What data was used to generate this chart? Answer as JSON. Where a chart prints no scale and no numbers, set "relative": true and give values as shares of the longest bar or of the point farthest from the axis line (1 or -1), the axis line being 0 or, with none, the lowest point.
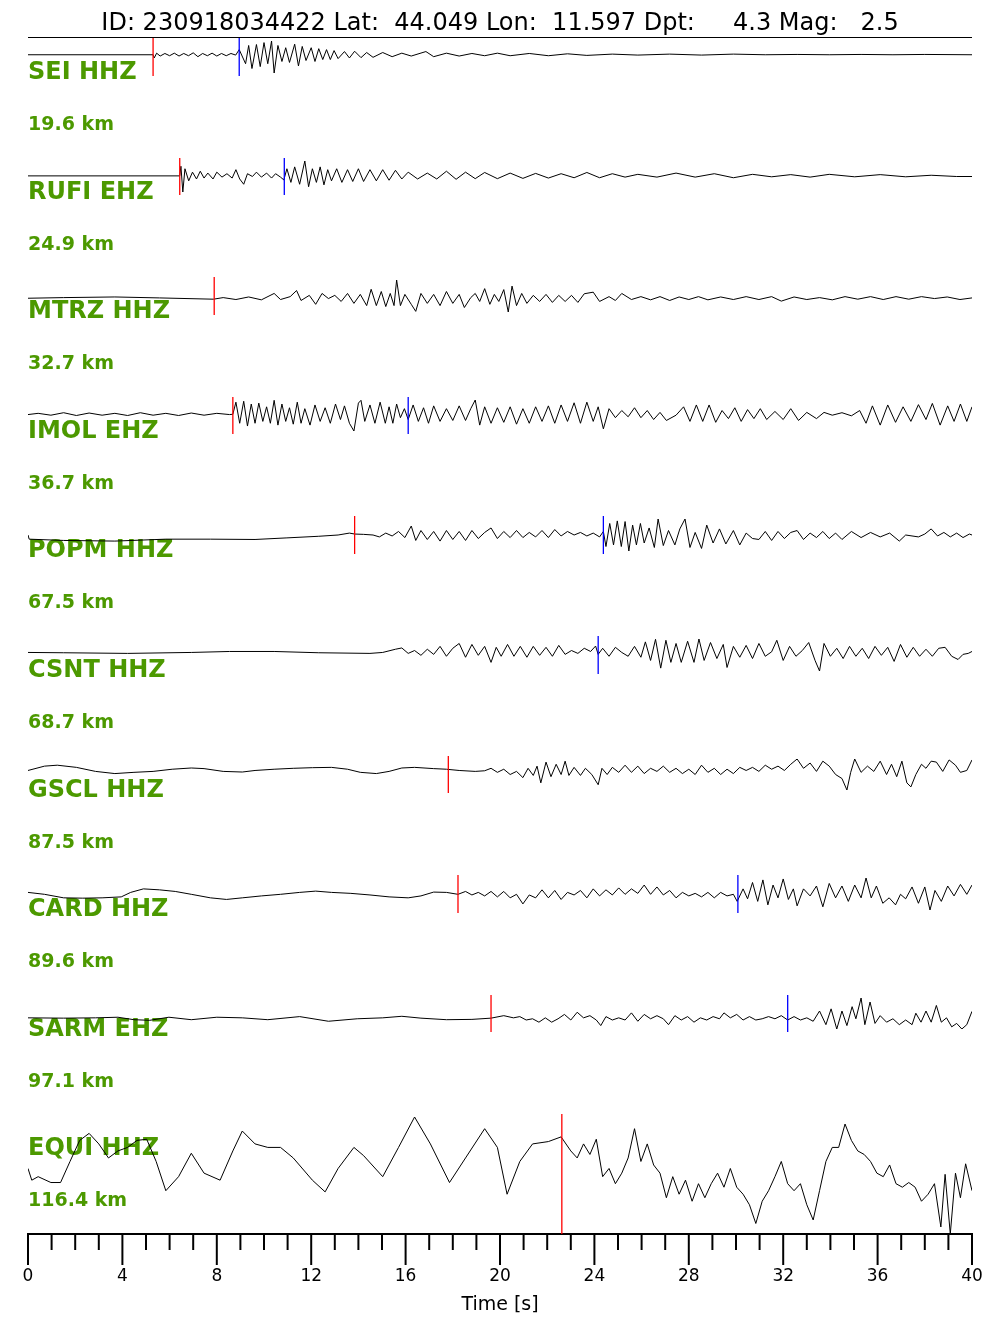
{
  "chart_data": [
    {
      "type": "line",
      "title": "ID: 230918034422 Lat:  44.049 Lon:  11.597 Dpt:     4.3 Mag:   2.5",
      "annotations": [
        "SEI HHZ",
        "19.6 km"
      ],
      "relative": true,
      "color": "#000000",
      "xlim": [
        0,
        40
      ],
      "tick_labels": false,
      "ref_lines": [
        {
          "axis": "x",
          "value": 5.3,
          "color": "#ff0000"
        },
        {
          "axis": "x",
          "value": 8.95,
          "color": "#0000ff"
        }
      ],
      "x": [
        0,
        5.3,
        5.35,
        5.45,
        5.6,
        5.8,
        6.0,
        6.2,
        6.4,
        6.6,
        6.8,
        7.0,
        7.2,
        7.4,
        7.6,
        7.8,
        8.0,
        8.2,
        8.4,
        8.6,
        8.8,
        8.95,
        9.22,
        9.35,
        9.49,
        9.68,
        9.84,
        10.0,
        10.16,
        10.32,
        10.43,
        10.59,
        10.76,
        10.92,
        11.08,
        11.3,
        11.46,
        11.62,
        11.78,
        12.0,
        12.16,
        12.32,
        12.49,
        12.65,
        12.81,
        12.97,
        13.14,
        13.41,
        13.62,
        13.84,
        14.11,
        14.35,
        14.62,
        15.03,
        15.43,
        15.84,
        16.24,
        16.86,
        17.19,
        17.73,
        18.27,
        18.81,
        19.35,
        19.89,
        20.43,
        21.24,
        22.05,
        22.86,
        23.68,
        24.76,
        25.84,
        27.19,
        28.54,
        29.89,
        31.24,
        32.59,
        33.95,
        35.3,
        36.65,
        38.0,
        40
      ],
      "values": [
        0.57,
        0.57,
        0.47,
        0.62,
        0.53,
        0.61,
        0.54,
        0.62,
        0.53,
        0.61,
        0.54,
        0.63,
        0.51,
        0.61,
        0.54,
        0.62,
        0.53,
        0.61,
        0.54,
        0.61,
        0.56,
        0.73,
        0.29,
        0.86,
        0.14,
        0.89,
        0.2,
        0.95,
        0.29,
        1.0,
        0,
        0.86,
        0.36,
        0.79,
        0.33,
        0.9,
        0.22,
        0.83,
        0.39,
        0.79,
        0.36,
        0.76,
        0.42,
        0.73,
        0.42,
        0.7,
        0.45,
        0.67,
        0.47,
        0.68,
        0.48,
        0.64,
        0.49,
        0.64,
        0.51,
        0.62,
        0.53,
        0.67,
        0.51,
        0.62,
        0.53,
        0.61,
        0.54,
        0.62,
        0.54,
        0.61,
        0.54,
        0.6,
        0.55,
        0.59,
        0.56,
        0.59,
        0.56,
        0.59,
        0.57,
        0.58,
        0.57,
        0.58,
        0.57,
        0.58,
        0.57
      ]
    },
    {
      "type": "line",
      "annotations": [
        "RUFI EHZ",
        "24.9 km"
      ],
      "relative": true,
      "color": "#000000",
      "xlim": [
        0,
        40
      ],
      "tick_labels": false,
      "ref_lines": [
        {
          "axis": "x",
          "value": 6.43,
          "color": "#ff0000"
        },
        {
          "axis": "x",
          "value": 10.86,
          "color": "#0000ff"
        }
      ],
      "x": [
        0,
        6.43,
        6.48,
        6.56,
        6.65,
        6.81,
        6.97,
        7.14,
        7.3,
        7.46,
        7.62,
        7.84,
        8.0,
        8.22,
        8.43,
        8.65,
        8.81,
        8.97,
        9.14,
        9.3,
        9.51,
        9.68,
        9.89,
        10.11,
        10.32,
        10.49,
        10.7,
        10.84,
        10.97,
        11.14,
        11.3,
        11.51,
        11.73,
        11.89,
        12.05,
        12.22,
        12.38,
        12.54,
        12.7,
        12.86,
        13.08,
        13.3,
        13.54,
        13.76,
        14.0,
        14.22,
        14.49,
        14.76,
        15.03,
        15.3,
        15.57,
        15.84,
        16.11,
        16.51,
        16.92,
        17.32,
        17.73,
        18.14,
        18.54,
        18.95,
        19.35,
        19.89,
        20.43,
        20.97,
        21.51,
        22.05,
        22.59,
        23.14,
        23.68,
        24.22,
        24.76,
        25.3,
        25.84,
        26.65,
        27.46,
        28.27,
        29.08,
        29.89,
        30.7,
        31.51,
        32.32,
        33.14,
        33.95,
        35.03,
        36.11,
        37.19,
        38.27,
        39.35,
        40
      ],
      "values": [
        0.52,
        0.52,
        0.83,
        0,
        0.75,
        0.36,
        0.64,
        0.42,
        0.67,
        0.45,
        0.61,
        0.42,
        0.64,
        0.48,
        0.59,
        0.45,
        0.72,
        0.42,
        0.25,
        0.59,
        0.5,
        0.64,
        0.48,
        0.61,
        0.45,
        0.59,
        0.48,
        0.39,
        0.75,
        0.31,
        0.81,
        0.25,
        1.0,
        0.17,
        0.75,
        0.31,
        0.81,
        0.23,
        0.72,
        0.36,
        0.75,
        0.31,
        0.72,
        0.34,
        0.75,
        0.34,
        0.72,
        0.36,
        0.72,
        0.38,
        0.7,
        0.42,
        0.64,
        0.42,
        0.61,
        0.42,
        0.67,
        0.41,
        0.64,
        0.43,
        0.63,
        0.43,
        0.61,
        0.44,
        0.6,
        0.45,
        0.59,
        0.46,
        0.63,
        0.46,
        0.59,
        0.48,
        0.57,
        0.48,
        0.61,
        0.48,
        0.59,
        0.46,
        0.57,
        0.49,
        0.56,
        0.48,
        0.57,
        0.49,
        0.56,
        0.49,
        0.54,
        0.5,
        0.5
      ]
    },
    {
      "type": "line",
      "annotations": [
        "MTRZ HHZ",
        "32.7 km"
      ],
      "relative": true,
      "color": "#000000",
      "xlim": [
        0,
        40
      ],
      "tick_labels": false,
      "ref_lines": [
        {
          "axis": "x",
          "value": 7.89,
          "color": "#ff0000"
        }
      ],
      "x": [
        0,
        1.51,
        3.68,
        5.57,
        7.86,
        8.27,
        8.81,
        9.35,
        9.89,
        10.43,
        10.7,
        11.11,
        11.38,
        11.57,
        11.92,
        12.19,
        12.46,
        12.73,
        13.0,
        13.27,
        13.54,
        13.81,
        14.08,
        14.35,
        14.54,
        14.76,
        14.97,
        15.16,
        15.35,
        15.51,
        15.62,
        15.78,
        15.97,
        16.24,
        16.43,
        16.65,
        16.92,
        17.19,
        17.46,
        17.73,
        18.0,
        18.27,
        18.49,
        18.76,
        18.95,
        19.14,
        19.35,
        19.57,
        19.76,
        19.95,
        20.16,
        20.35,
        20.51,
        20.7,
        20.92,
        21.14,
        21.41,
        21.68,
        21.95,
        22.22,
        22.49,
        22.76,
        23.03,
        23.3,
        23.57,
        23.95,
        24.22,
        24.62,
        24.89,
        25.16,
        25.57,
        25.97,
        26.38,
        26.78,
        27.19,
        27.59,
        28.0,
        28.41,
        28.81,
        29.35,
        29.89,
        30.43,
        30.97,
        31.51,
        31.92,
        32.46,
        33.0,
        33.54,
        34.08,
        34.62,
        35.16,
        35.7,
        36.24,
        36.78,
        37.32,
        37.86,
        38.41,
        38.95,
        39.49,
        40
      ],
      "values": [
        0.43,
        0.45,
        0.47,
        0.44,
        0.4,
        0.45,
        0.39,
        0.47,
        0.38,
        0.58,
        0.39,
        0.48,
        0.67,
        0.36,
        0.52,
        0.24,
        0.58,
        0.42,
        0.52,
        0.33,
        0.58,
        0.27,
        0.55,
        0.2,
        0.71,
        0.2,
        0.64,
        0.17,
        0.58,
        0.2,
        1.0,
        0.2,
        0.55,
        0.24,
        0.02,
        0.58,
        0.27,
        0.55,
        0.2,
        0.64,
        0.27,
        0.55,
        0.14,
        0.45,
        0.58,
        0.33,
        0.73,
        0.24,
        0.55,
        0.33,
        0.7,
        0,
        0.81,
        0.2,
        0.58,
        0.27,
        0.52,
        0.33,
        0.55,
        0.3,
        0.52,
        0.33,
        0.52,
        0.3,
        0.57,
        0.62,
        0.33,
        0.48,
        0.36,
        0.58,
        0.39,
        0.48,
        0.38,
        0.48,
        0.36,
        0.47,
        0.39,
        0.48,
        0.38,
        0.47,
        0.39,
        0.48,
        0.39,
        0.48,
        0.34,
        0.47,
        0.39,
        0.45,
        0.38,
        0.48,
        0.4,
        0.48,
        0.39,
        0.48,
        0.4,
        0.48,
        0.42,
        0.47,
        0.39,
        0.44
      ]
    },
    {
      "type": "line",
      "annotations": [
        "IMOL EHZ",
        "36.7 km"
      ],
      "relative": true,
      "color": "#000000",
      "xlim": [
        0,
        40
      ],
      "tick_labels": false,
      "ref_lines": [
        {
          "axis": "x",
          "value": 8.68,
          "color": "#ff0000"
        },
        {
          "axis": "x",
          "value": 16.11,
          "color": "#0000ff"
        }
      ],
      "x": [
        0,
        0.43,
        0.97,
        1.51,
        2.05,
        2.59,
        3.14,
        3.68,
        4.22,
        4.76,
        5.3,
        5.84,
        6.38,
        6.92,
        7.46,
        8.0,
        8.54,
        8.68,
        8.81,
        8.97,
        9.14,
        9.3,
        9.46,
        9.62,
        9.78,
        9.95,
        10.11,
        10.27,
        10.43,
        10.59,
        10.76,
        10.92,
        11.08,
        11.24,
        11.41,
        11.57,
        11.73,
        11.95,
        12.16,
        12.38,
        12.59,
        12.81,
        13.03,
        13.24,
        13.41,
        13.62,
        13.81,
        14.0,
        14.11,
        14.27,
        14.49,
        14.7,
        14.92,
        15.14,
        15.3,
        15.46,
        15.62,
        15.78,
        15.95,
        16.11,
        16.32,
        16.54,
        16.76,
        16.97,
        17.19,
        17.46,
        17.73,
        18.0,
        18.27,
        18.54,
        18.76,
        18.95,
        19.14,
        19.35,
        19.62,
        19.89,
        20.16,
        20.43,
        20.7,
        20.97,
        21.24,
        21.51,
        21.78,
        22.05,
        22.32,
        22.59,
        22.86,
        23.14,
        23.41,
        23.68,
        23.95,
        24.16,
        24.38,
        24.62,
        24.89,
        25.16,
        25.43,
        25.7,
        25.97,
        26.24,
        26.51,
        26.78,
        27.05,
        27.46,
        27.78,
        28.05,
        28.32,
        28.59,
        28.86,
        29.14,
        29.41,
        29.68,
        29.95,
        30.22,
        30.49,
        30.76,
        31.03,
        31.3,
        31.65,
        32.0,
        32.32,
        32.65,
        33.0,
        33.41,
        33.73,
        34.08,
        34.49,
        34.89,
        35.24,
        35.51,
        35.78,
        36.11,
        36.43,
        36.76,
        37.08,
        37.41,
        37.73,
        38.05,
        38.32,
        38.65,
        38.97,
        39.24,
        39.51,
        39.78,
        40
      ],
      "values": [
        0.53,
        0.57,
        0.51,
        0.59,
        0.5,
        0.58,
        0.51,
        0.57,
        0.5,
        0.59,
        0.51,
        0.57,
        0.5,
        0.58,
        0.51,
        0.57,
        0.53,
        0.54,
        0.93,
        0.25,
        0.96,
        0.16,
        0.87,
        0.25,
        0.9,
        0.31,
        0.78,
        0.25,
        0.99,
        0.19,
        0.87,
        0.31,
        0.75,
        0.22,
        0.93,
        0.25,
        0.72,
        0.19,
        0.84,
        0.31,
        0.75,
        0.25,
        0.87,
        0.37,
        0.81,
        0.25,
        0,
        0.9,
        0.99,
        0.31,
        0.84,
        0.25,
        0.93,
        0.25,
        0.78,
        0.25,
        0.87,
        0.43,
        0.72,
        0.37,
        0.84,
        0.31,
        0.75,
        0.25,
        0.81,
        0.31,
        0.72,
        0.34,
        0.81,
        0.34,
        0.72,
        1.0,
        0.19,
        0.78,
        0.25,
        0.75,
        0.28,
        0.78,
        0.22,
        0.72,
        0.25,
        0.78,
        0.31,
        0.81,
        0.25,
        0.84,
        0.31,
        0.91,
        0.25,
        0.93,
        0.31,
        0.78,
        0.07,
        0.72,
        0.43,
        0.66,
        0.46,
        0.75,
        0.43,
        0.66,
        0.37,
        0.6,
        0.34,
        0.51,
        0.78,
        0.31,
        0.84,
        0.31,
        0.84,
        0.28,
        0.66,
        0.4,
        0.75,
        0.31,
        0.69,
        0.4,
        0.72,
        0.37,
        0.63,
        0.37,
        0.72,
        0.34,
        0.6,
        0.4,
        0.6,
        0.51,
        0.59,
        0.49,
        0.66,
        0.25,
        0.81,
        0.19,
        0.84,
        0.28,
        0.78,
        0.31,
        0.85,
        0.37,
        0.89,
        0.19,
        0.81,
        0.31,
        0.87,
        0.31,
        0.78
      ]
    },
    {
      "type": "line",
      "annotations": [
        "POPM HHZ",
        "67.5 km"
      ],
      "relative": true,
      "color": "#000000",
      "xlim": [
        0,
        40
      ],
      "tick_labels": false,
      "ref_lines": [
        {
          "axis": "x",
          "value": 13.84,
          "color": "#ff0000"
        },
        {
          "axis": "x",
          "value": 24.38,
          "color": "#0000ff"
        }
      ],
      "x": [
        0,
        0.05,
        1.51,
        3.68,
        5.84,
        7.73,
        9.62,
        10.97,
        12.32,
        13.14,
        13.62,
        13.84,
        14.22,
        14.62,
        14.89,
        15.16,
        15.43,
        15.7,
        15.97,
        16.24,
        16.43,
        16.65,
        16.92,
        17.19,
        17.46,
        17.73,
        18.0,
        18.27,
        18.54,
        18.81,
        19.08,
        19.35,
        19.62,
        19.89,
        20.16,
        20.43,
        20.7,
        20.97,
        21.24,
        21.51,
        21.78,
        22.05,
        22.32,
        22.59,
        22.86,
        23.14,
        23.41,
        23.68,
        23.95,
        24.22,
        24.38,
        24.49,
        24.65,
        24.81,
        24.97,
        25.14,
        25.3,
        25.46,
        25.62,
        25.78,
        25.95,
        26.11,
        26.32,
        26.54,
        26.7,
        26.92,
        27.14,
        27.41,
        27.62,
        27.84,
        28.05,
        28.27,
        28.54,
        28.76,
        29.03,
        29.3,
        29.57,
        29.89,
        30.16,
        30.43,
        30.7,
        30.97,
        31.24,
        31.51,
        31.78,
        32.05,
        32.32,
        32.59,
        32.86,
        33.14,
        33.41,
        33.68,
        33.95,
        34.22,
        34.49,
        34.89,
        35.3,
        35.7,
        36.11,
        36.51,
        36.92,
        37.19,
        37.73,
        38.0,
        38.27,
        38.54,
        38.81,
        39.08,
        39.35,
        39.62,
        39.89,
        40
      ],
      "values": [
        0.5,
        0.37,
        0.33,
        0.31,
        0.37,
        0.37,
        0.36,
        0.41,
        0.46,
        0.5,
        0.56,
        0.53,
        0.52,
        0.5,
        0.44,
        0.56,
        0.47,
        0.61,
        0.42,
        0.78,
        0.33,
        0.64,
        0.36,
        0.61,
        0.31,
        0.64,
        0.36,
        0.61,
        0.33,
        0.64,
        0.39,
        0.58,
        0.72,
        0.39,
        0.61,
        0.42,
        0.64,
        0.42,
        0.58,
        0.44,
        0.64,
        0.42,
        0.67,
        0.47,
        0.61,
        0.5,
        0.58,
        0.47,
        0.56,
        0.44,
        0.61,
        0.14,
        0.86,
        0.19,
        0.94,
        0.14,
        0.92,
        0,
        0.81,
        0.19,
        0.86,
        0.25,
        0.72,
        0.11,
        1.0,
        0.17,
        0.64,
        0.19,
        0.69,
        1.0,
        0.11,
        0.58,
        0.08,
        0.81,
        0.25,
        0.69,
        0.22,
        0.64,
        0.19,
        0.56,
        0.39,
        0.36,
        0.61,
        0.33,
        0.61,
        0.39,
        0.58,
        0.64,
        0.36,
        0.56,
        0.42,
        0.61,
        0.39,
        0.56,
        0.36,
        0.61,
        0.42,
        0.58,
        0.44,
        0.56,
        0.31,
        0.5,
        0.44,
        0.53,
        0.69,
        0.47,
        0.58,
        0.44,
        0.56,
        0.42,
        0.53,
        0.5
      ]
    },
    {
      "type": "line",
      "annotations": [
        "CSNT HHZ",
        "68.7 km"
      ],
      "relative": true,
      "color": "#000000",
      "xlim": [
        0,
        40
      ],
      "tick_labels": false,
      "ref_lines": [
        {
          "axis": "x",
          "value": 24.16,
          "color": "#0000ff"
        }
      ],
      "x": [
        0,
        1.51,
        4.22,
        6.92,
        8.54,
        10.43,
        12.32,
        14.49,
        15.03,
        15.57,
        15.84,
        16.11,
        16.38,
        16.65,
        16.92,
        17.19,
        17.46,
        17.73,
        18.0,
        18.27,
        18.54,
        18.81,
        19.08,
        19.35,
        19.62,
        19.84,
        20.05,
        20.32,
        20.59,
        20.86,
        21.14,
        21.41,
        21.68,
        21.95,
        22.22,
        22.49,
        22.76,
        23.03,
        23.3,
        23.57,
        23.84,
        24.05,
        24.16,
        24.35,
        24.62,
        24.89,
        25.16,
        25.43,
        25.7,
        25.97,
        26.16,
        26.38,
        26.59,
        26.81,
        27.03,
        27.24,
        27.46,
        27.68,
        27.95,
        28.22,
        28.43,
        28.65,
        28.92,
        29.19,
        29.46,
        29.62,
        29.89,
        30.16,
        30.43,
        30.7,
        30.97,
        31.24,
        31.51,
        31.73,
        32.0,
        32.27,
        32.54,
        32.81,
        33.08,
        33.35,
        33.54,
        33.73,
        34.0,
        34.27,
        34.54,
        34.81,
        35.08,
        35.35,
        35.62,
        35.89,
        36.16,
        36.43,
        36.7,
        36.97,
        37.24,
        37.51,
        37.78,
        38.05,
        38.32,
        38.59,
        38.86,
        39.14,
        39.41,
        39.62,
        39.84,
        40
      ],
      "values": [
        0.58,
        0.57,
        0.55,
        0.58,
        0.61,
        0.61,
        0.57,
        0.55,
        0.58,
        0.68,
        0.72,
        0.55,
        0.64,
        0.49,
        0.68,
        0.52,
        0.77,
        0.46,
        0.71,
        0.86,
        0.43,
        0.83,
        0.49,
        0.77,
        0.27,
        0.74,
        0.46,
        0.83,
        0.46,
        0.77,
        0.43,
        0.77,
        0.49,
        0.74,
        0.46,
        0.8,
        0.52,
        0.64,
        0.55,
        0.71,
        0.61,
        0.78,
        0.52,
        0.71,
        0.46,
        0.74,
        0.58,
        0.46,
        0.77,
        0.43,
        0.91,
        0.33,
        0.99,
        0.09,
        0.96,
        0.27,
        0.86,
        0.27,
        0.93,
        0.27,
        1.0,
        0.33,
        0.89,
        0.39,
        0.83,
        0.11,
        0.77,
        0.43,
        0.8,
        0.39,
        0.86,
        0.46,
        0.6,
        0.96,
        0.33,
        0.77,
        0.46,
        0.64,
        0.89,
        0.33,
        0,
        0.86,
        0.46,
        0.71,
        0.39,
        0.77,
        0.46,
        0.71,
        0.39,
        0.77,
        0.49,
        0.74,
        0.3,
        0.83,
        0.43,
        0.74,
        0.46,
        0.68,
        0.46,
        0.71,
        0.74,
        0.46,
        0.36,
        0.52,
        0.55,
        0.61
      ]
    },
    {
      "type": "line",
      "annotations": [
        "GSCL HHZ",
        "87.5 km"
      ],
      "relative": true,
      "color": "#000000",
      "xlim": [
        0,
        40
      ],
      "tick_labels": false,
      "ref_lines": [
        {
          "axis": "x",
          "value": 17.81,
          "color": "#ff0000"
        }
      ],
      "x": [
        0,
        0.7,
        1.24,
        2.05,
        2.86,
        3.68,
        4.49,
        5.3,
        6.11,
        6.92,
        7.46,
        8.27,
        9.08,
        9.62,
        10.43,
        11.24,
        12.05,
        12.86,
        13.54,
        14.08,
        14.76,
        15.3,
        15.84,
        16.38,
        17.19,
        17.73,
        18.27,
        18.95,
        19.35,
        19.62,
        19.89,
        20.16,
        20.43,
        20.7,
        20.97,
        21.19,
        21.41,
        21.57,
        21.73,
        21.95,
        22.16,
        22.38,
        22.59,
        22.76,
        22.92,
        23.14,
        23.41,
        23.62,
        23.89,
        24.16,
        24.32,
        24.54,
        24.76,
        25.03,
        25.3,
        25.57,
        25.84,
        26.11,
        26.38,
        26.65,
        26.92,
        27.19,
        27.46,
        27.73,
        28.0,
        28.27,
        28.54,
        28.81,
        29.08,
        29.35,
        29.62,
        29.89,
        30.16,
        30.43,
        30.7,
        30.97,
        31.24,
        31.51,
        31.78,
        32.05,
        32.32,
        32.59,
        32.86,
        33.14,
        33.41,
        33.68,
        33.95,
        34.22,
        34.49,
        34.7,
        34.86,
        35.03,
        35.3,
        35.57,
        35.84,
        36.11,
        36.38,
        36.59,
        36.81,
        37.03,
        37.24,
        37.41,
        37.62,
        37.86,
        38.05,
        38.27,
        38.49,
        38.76,
        39.03,
        39.3,
        39.51,
        39.78,
        40
      ],
      "values": [
        0.63,
        0.77,
        0.8,
        0.73,
        0.6,
        0.53,
        0.57,
        0.6,
        0.67,
        0.71,
        0.69,
        0.6,
        0.58,
        0.63,
        0.67,
        0.7,
        0.72,
        0.73,
        0.67,
        0.57,
        0.53,
        0.6,
        0.71,
        0.73,
        0.69,
        0.67,
        0.63,
        0.6,
        0.62,
        0.7,
        0.57,
        0.67,
        0.5,
        0.6,
        0.4,
        0.7,
        0.47,
        0.77,
        0.23,
        0.9,
        0.43,
        0.83,
        0.5,
        0.93,
        0.47,
        0.73,
        0.47,
        0.7,
        0.5,
        0.17,
        0.7,
        0.5,
        0.73,
        0.57,
        0.8,
        0.57,
        0.77,
        0.53,
        0.7,
        0.6,
        0.77,
        0.57,
        0.7,
        0.53,
        0.67,
        0.5,
        0.8,
        0.57,
        0.7,
        0.5,
        0.67,
        0.53,
        0.73,
        0.63,
        0.73,
        0.6,
        0.8,
        0.67,
        0.77,
        0.63,
        0.83,
        1.0,
        0.7,
        0.87,
        0.6,
        0.93,
        0.77,
        0.5,
        0.37,
        0,
        0.57,
        1.0,
        0.57,
        0.77,
        0.6,
        0.93,
        0.5,
        0.83,
        0.43,
        0.93,
        0.23,
        0.1,
        0.5,
        0.83,
        0.7,
        0.93,
        0.9,
        0.6,
        0.97,
        0.8,
        0.57,
        0.63,
        0.97
      ]
    },
    {
      "type": "line",
      "annotations": [
        "CARD HHZ",
        "89.6 km"
      ],
      "relative": true,
      "color": "#000000",
      "xlim": [
        0,
        40
      ],
      "tick_labels": false,
      "ref_lines": [
        {
          "axis": "x",
          "value": 18.22,
          "color": "#ff0000"
        },
        {
          "axis": "x",
          "value": 30.08,
          "color": "#0000ff"
        }
      ],
      "x": [
        0,
        0.7,
        1.51,
        2.32,
        3.14,
        3.95,
        4.35,
        4.89,
        5.57,
        6.24,
        6.92,
        7.73,
        8.41,
        9.08,
        9.89,
        10.7,
        11.51,
        12.19,
        12.86,
        13.68,
        14.49,
        15.3,
        16.11,
        16.65,
        17.19,
        17.73,
        18.22,
        18.54,
        18.81,
        19.08,
        19.35,
        19.62,
        19.89,
        20.16,
        20.43,
        20.7,
        20.97,
        21.24,
        21.51,
        21.78,
        22.05,
        22.32,
        22.59,
        22.86,
        23.14,
        23.41,
        23.68,
        23.95,
        24.22,
        24.49,
        24.76,
        25.03,
        25.3,
        25.57,
        25.84,
        26.11,
        26.38,
        26.65,
        26.92,
        27.19,
        27.46,
        27.73,
        28.0,
        28.27,
        28.54,
        28.81,
        29.08,
        29.35,
        29.62,
        29.89,
        30.05,
        30.3,
        30.49,
        30.7,
        30.92,
        31.14,
        31.35,
        31.57,
        31.78,
        32.0,
        32.22,
        32.43,
        32.59,
        32.86,
        33.14,
        33.41,
        33.68,
        33.95,
        34.22,
        34.49,
        34.76,
        35.03,
        35.3,
        35.51,
        35.73,
        35.95,
        36.22,
        36.49,
        36.76,
        36.97,
        37.19,
        37.46,
        37.73,
        38.0,
        38.22,
        38.43,
        38.7,
        38.97,
        39.24,
        39.51,
        39.78,
        40
      ],
      "values": [
        0.55,
        0.49,
        0.38,
        0.37,
        0.38,
        0.41,
        0.55,
        0.66,
        0.63,
        0.58,
        0.49,
        0.38,
        0.33,
        0.38,
        0.44,
        0.49,
        0.55,
        0.59,
        0.55,
        0.52,
        0.47,
        0.41,
        0.38,
        0.44,
        0.56,
        0.55,
        0.49,
        0.58,
        0.47,
        0.55,
        0.44,
        0.58,
        0.41,
        0.58,
        0.38,
        0.49,
        0.19,
        0.47,
        0.38,
        0.63,
        0.38,
        0.61,
        0.33,
        0.55,
        0.47,
        0.61,
        0.38,
        0.66,
        0.44,
        0.63,
        0.47,
        0.69,
        0.49,
        0.66,
        0.52,
        0.78,
        0.49,
        0.72,
        0.47,
        0.61,
        0.38,
        0.55,
        0.44,
        0.52,
        0.41,
        0.55,
        0.38,
        0.55,
        0.44,
        0.49,
        0.27,
        0.66,
        0.35,
        0.86,
        0.27,
        0.94,
        0.16,
        0.78,
        0.38,
        0.97,
        0.33,
        0.66,
        0.13,
        0.66,
        0.44,
        0.75,
        0.1,
        0.83,
        0.38,
        0.75,
        0.27,
        0.78,
        0.38,
        1.0,
        0.38,
        0.75,
        0.21,
        0.38,
        0.16,
        0.49,
        0.35,
        0.72,
        0.21,
        0.72,
        0,
        0.61,
        0.27,
        0.75,
        0.44,
        0.8,
        0.49,
        0.78
      ]
    },
    {
      "type": "line",
      "annotations": [
        "SARM EHZ",
        "97.1 km"
      ],
      "relative": true,
      "color": "#000000",
      "xlim": [
        0,
        40
      ],
      "tick_labels": false,
      "ref_lines": [
        {
          "axis": "x",
          "value": 19.62,
          "color": "#ff0000"
        },
        {
          "axis": "x",
          "value": 32.19,
          "color": "#0000ff"
        }
      ],
      "x": [
        0,
        1.51,
        2.86,
        3.81,
        4.49,
        5.16,
        5.97,
        6.92,
        8.0,
        9.08,
        10.16,
        11.51,
        12.73,
        13.95,
        15.03,
        15.84,
        16.65,
        17.73,
        18.81,
        19.62,
        20.16,
        20.57,
        20.84,
        21.11,
        21.38,
        21.65,
        21.92,
        22.19,
        22.46,
        22.73,
        23.0,
        23.27,
        23.54,
        23.81,
        24.08,
        24.27,
        24.49,
        24.76,
        25.03,
        25.3,
        25.57,
        25.84,
        26.11,
        26.38,
        26.65,
        26.92,
        27.14,
        27.41,
        27.68,
        27.95,
        28.22,
        28.49,
        28.76,
        29.03,
        29.3,
        29.49,
        29.76,
        30.03,
        30.3,
        30.57,
        30.84,
        31.11,
        31.38,
        31.65,
        31.92,
        32.19,
        32.46,
        32.73,
        33.0,
        33.27,
        33.54,
        33.81,
        34.03,
        34.27,
        34.49,
        34.7,
        34.92,
        35.08,
        35.3,
        35.46,
        35.68,
        35.89,
        36.11,
        36.38,
        36.65,
        36.92,
        37.19,
        37.46,
        37.62,
        37.84,
        38.05,
        38.27,
        38.49,
        38.7,
        38.92,
        39.14,
        39.35,
        39.57,
        39.78,
        40
      ],
      "values": [
        0.36,
        0.35,
        0.36,
        0.38,
        0.3,
        0.28,
        0.38,
        0.3,
        0.38,
        0.36,
        0.3,
        0.4,
        0.25,
        0.33,
        0.36,
        0.41,
        0.35,
        0.3,
        0.31,
        0.35,
        0.43,
        0.36,
        0.4,
        0.29,
        0.33,
        0.22,
        0.36,
        0.22,
        0.33,
        0.47,
        0.29,
        0.54,
        0.36,
        0.43,
        0.29,
        0.11,
        0.4,
        0.29,
        0.36,
        0.29,
        0.52,
        0.25,
        0.47,
        0.33,
        0.43,
        0.33,
        0.14,
        0.43,
        0.29,
        0.4,
        0.22,
        0.36,
        0.29,
        0.4,
        0.33,
        0.52,
        0.36,
        0.47,
        0.29,
        0.4,
        0.29,
        0.33,
        0.4,
        0.33,
        0.43,
        0.29,
        0.4,
        0.29,
        0.36,
        0.25,
        0.58,
        0.14,
        0.65,
        0,
        0.58,
        0.11,
        0.72,
        0.33,
        1.0,
        0.14,
        0.87,
        0.18,
        0.43,
        0.22,
        0.33,
        0.14,
        0.29,
        0.14,
        0.51,
        0.22,
        0.58,
        0.22,
        0.76,
        0.22,
        0.36,
        0.07,
        0.18,
        0,
        0.14,
        0.57
      ]
    },
    {
      "type": "line",
      "annotations": [
        "EQUI HHZ",
        "116.4 km"
      ],
      "relative": true,
      "color": "#000000",
      "xlim": [
        0,
        40
      ],
      "tick_labels": "x",
      "xlabel": "Time [s]",
      "ref_lines": [
        {
          "axis": "x",
          "value": 22.62,
          "color": "#ff0000"
        }
      ],
      "xticks": [
        0,
        {
          "value": 1,
          "label": null
        },
        {
          "value": 2,
          "label": null
        },
        {
          "value": 3,
          "label": null
        },
        4,
        {
          "value": 5,
          "label": null
        },
        {
          "value": 6,
          "label": null
        },
        {
          "value": 7,
          "label": null
        },
        8,
        {
          "value": 9,
          "label": null
        },
        {
          "value": 10,
          "label": null
        },
        {
          "value": 11,
          "label": null
        },
        12,
        {
          "value": 13,
          "label": null
        },
        {
          "value": 14,
          "label": null
        },
        {
          "value": 15,
          "label": null
        },
        16,
        {
          "value": 17,
          "label": null
        },
        {
          "value": 18,
          "label": null
        },
        {
          "value": 19,
          "label": null
        },
        20,
        {
          "value": 21,
          "label": null
        },
        {
          "value": 22,
          "label": null
        },
        {
          "value": 23,
          "label": null
        },
        24,
        {
          "value": 25,
          "label": null
        },
        {
          "value": 26,
          "label": null
        },
        {
          "value": 27,
          "label": null
        },
        28,
        {
          "value": 29,
          "label": null
        },
        {
          "value": 30,
          "label": null
        },
        {
          "value": 31,
          "label": null
        },
        32,
        {
          "value": 33,
          "label": null
        },
        {
          "value": 34,
          "label": null
        },
        {
          "value": 35,
          "label": null
        },
        36,
        {
          "value": 37,
          "label": null
        },
        {
          "value": 38,
          "label": null
        },
        {
          "value": 39,
          "label": null
        },
        40
      ],
      "x": [
        0,
        0.16,
        0.43,
        0.97,
        1.38,
        1.78,
        2.19,
        2.59,
        3.0,
        3.41,
        3.81,
        4.22,
        4.62,
        5.03,
        5.43,
        5.84,
        6.38,
        6.92,
        7.46,
        8.14,
        8.68,
        9.08,
        9.62,
        10.16,
        10.7,
        11.24,
        12.05,
        12.59,
        13.14,
        13.81,
        14.22,
        15.03,
        15.7,
        16.38,
        17.05,
        17.86,
        18.54,
        19.35,
        19.89,
        20.3,
        20.84,
        21.38,
        22.05,
        22.59,
        23.0,
        23.27,
        23.54,
        23.81,
        24.08,
        24.35,
        24.62,
        24.89,
        25.16,
        25.43,
        25.7,
        25.97,
        26.24,
        26.51,
        26.78,
        27.05,
        27.32,
        27.59,
        27.86,
        28.14,
        28.41,
        28.68,
        28.95,
        29.22,
        29.49,
        29.76,
        30.03,
        30.3,
        30.57,
        30.84,
        31.11,
        31.38,
        31.65,
        31.92,
        32.19,
        32.46,
        32.73,
        33.0,
        33.27,
        33.54,
        33.81,
        34.08,
        34.35,
        34.62,
        34.89,
        35.16,
        35.43,
        35.7,
        35.97,
        36.24,
        36.51,
        36.78,
        37.05,
        37.32,
        37.59,
        37.86,
        38.14,
        38.41,
        38.68,
        38.86,
        39.08,
        39.3,
        39.51,
        39.73,
        40
      ],
      "values": [
        0.56,
        0.46,
        0.49,
        0.44,
        0.44,
        0.62,
        0.8,
        0.86,
        0.77,
        0.65,
        0.71,
        0.74,
        0.8,
        0.81,
        0.62,
        0.37,
        0.49,
        0.69,
        0.52,
        0.46,
        0.71,
        0.88,
        0.77,
        0.74,
        0.74,
        0.65,
        0.46,
        0.36,
        0.56,
        0.74,
        0.67,
        0.49,
        0.74,
        1.0,
        0.77,
        0.44,
        0.65,
        0.9,
        0.74,
        0.34,
        0.62,
        0.77,
        0.79,
        0.83,
        0.71,
        0.65,
        0.77,
        0.68,
        0.81,
        0.49,
        0.56,
        0.43,
        0.52,
        0.65,
        0.9,
        0.62,
        0.77,
        0.59,
        0.52,
        0.31,
        0.49,
        0.34,
        0.46,
        0.28,
        0.43,
        0.31,
        0.43,
        0.52,
        0.4,
        0.56,
        0.4,
        0.34,
        0.25,
        0.09,
        0.28,
        0.37,
        0.49,
        0.62,
        0.43,
        0.37,
        0.43,
        0.25,
        0.12,
        0.37,
        0.62,
        0.74,
        0.74,
        0.94,
        0.8,
        0.71,
        0.68,
        0.62,
        0.52,
        0.49,
        0.59,
        0.43,
        0.4,
        0.44,
        0.4,
        0.28,
        0.34,
        0.43,
        0.06,
        0.51,
        0,
        0.52,
        0.31,
        0.6,
        0.37
      ]
    }
  ]
}
